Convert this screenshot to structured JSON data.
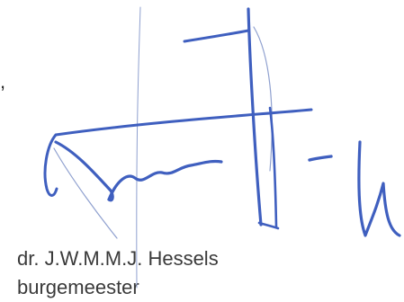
{
  "document": {
    "edge_mark": ",",
    "signatory": {
      "name": "dr. J.W.M.M.J. Hessels",
      "role": "burgemeester"
    },
    "signature": {
      "ink_color": "#3f5fbf",
      "faint_ink_color": "#8fa0cf"
    }
  }
}
